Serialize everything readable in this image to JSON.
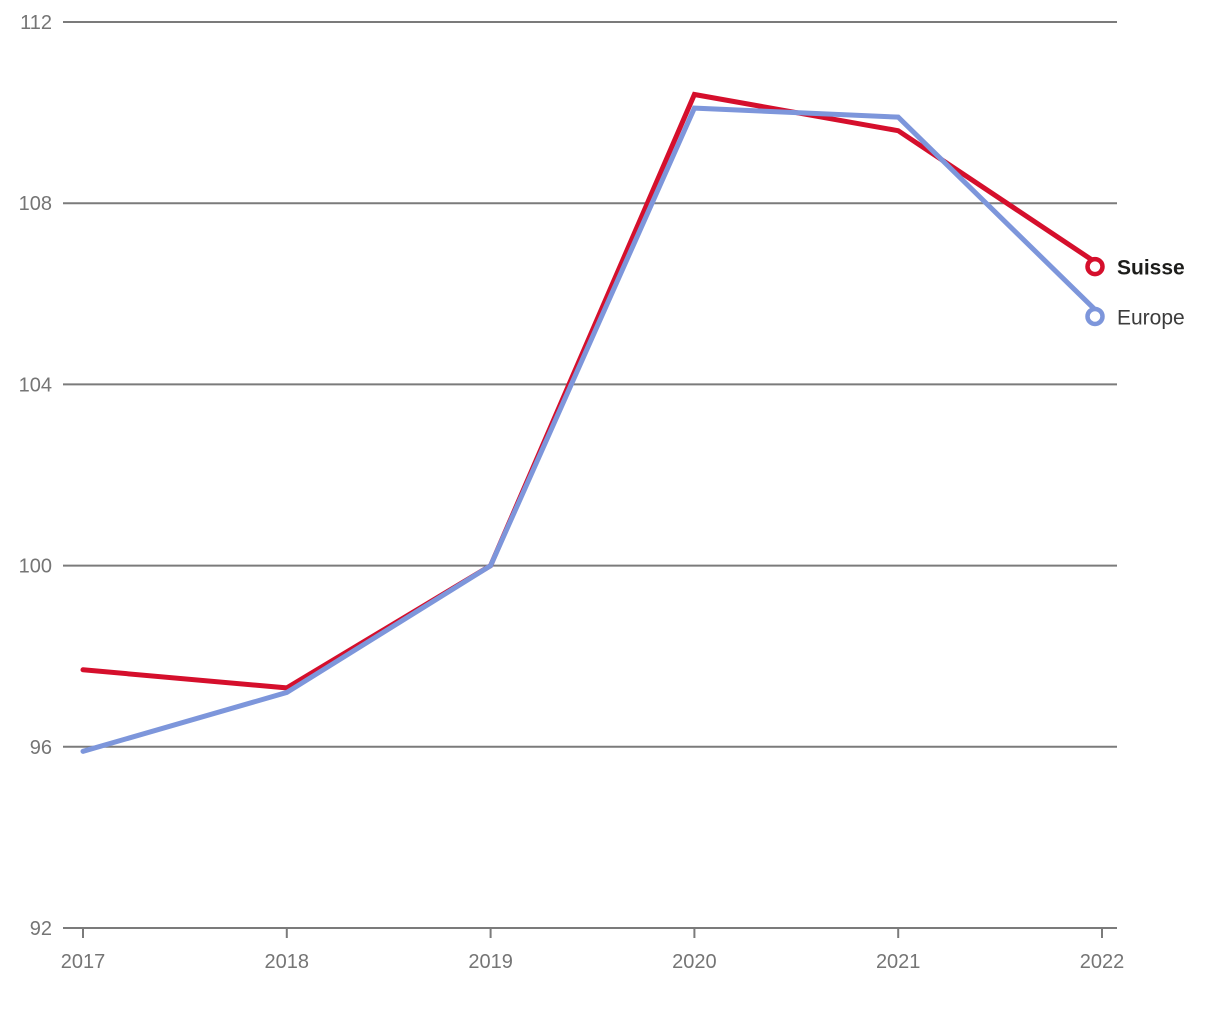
{
  "chart_data": {
    "type": "line",
    "title": "",
    "xlabel": "",
    "ylabel": "",
    "x": [
      2017,
      2018,
      2019,
      2020,
      2021,
      2022
    ],
    "x_tick_labels": [
      "2017",
      "2018",
      "2019",
      "2020",
      "2021",
      "2022"
    ],
    "series": [
      {
        "name": "Suisse",
        "color": "#d50f2c",
        "label_color": "#1d1d1b",
        "label_bold": true,
        "values": [
          97.7,
          97.3,
          100.0,
          110.4,
          109.6,
          106.6
        ]
      },
      {
        "name": "Europe",
        "color": "#7d96db",
        "label_color": "#3c3c3c",
        "label_bold": false,
        "values": [
          95.9,
          97.2,
          100.0,
          110.1,
          109.9,
          105.5
        ]
      }
    ],
    "ylim": [
      92,
      112
    ],
    "yticks": [
      92,
      96,
      100,
      104,
      108,
      112
    ],
    "ytick_labels": [
      "92",
      "96",
      "100",
      "104",
      "108",
      "112"
    ],
    "grid": true,
    "gridline_color": "#7b7b7b",
    "axis_label_color": "#757575",
    "legend_position": "right-of-line-end",
    "end_markers": "open-circle"
  }
}
